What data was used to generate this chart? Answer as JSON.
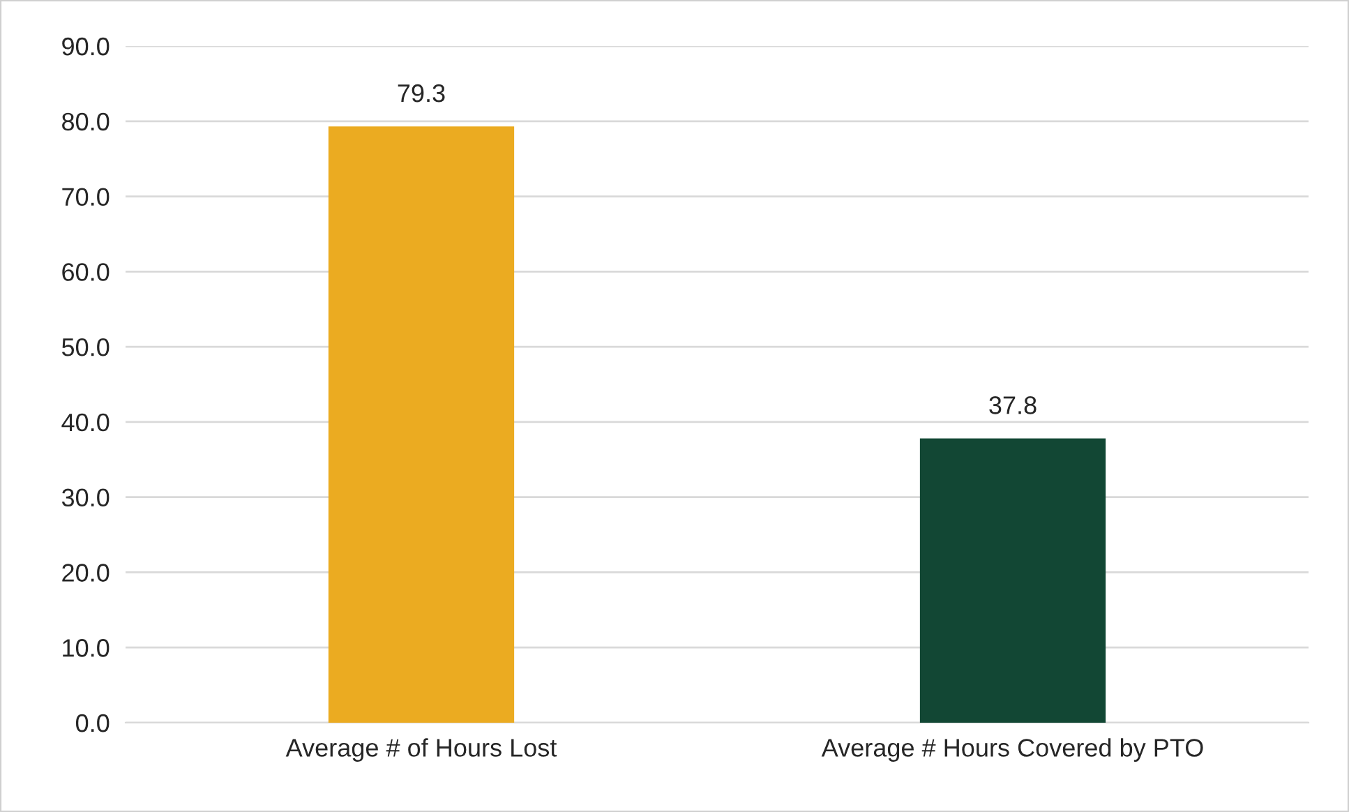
{
  "chart_data": {
    "type": "bar",
    "categories": [
      "Average # of Hours Lost",
      "Average # Hours Covered by PTO"
    ],
    "values": [
      79.3,
      37.8
    ],
    "colors": [
      "#ebab21",
      "#124734"
    ],
    "ylim": [
      0,
      90
    ],
    "yticks": [
      {
        "value": 0,
        "label": "0.0"
      },
      {
        "value": 10,
        "label": "10.0"
      },
      {
        "value": 20,
        "label": "20.0"
      },
      {
        "value": 30,
        "label": "30.0"
      },
      {
        "value": 40,
        "label": "40.0"
      },
      {
        "value": 50,
        "label": "50.0"
      },
      {
        "value": 60,
        "label": "60.0"
      },
      {
        "value": 70,
        "label": "70.0"
      },
      {
        "value": 80,
        "label": "80.0"
      },
      {
        "value": 90,
        "label": "90.0"
      }
    ],
    "grid": "y",
    "data_labels": true,
    "legend": false
  }
}
